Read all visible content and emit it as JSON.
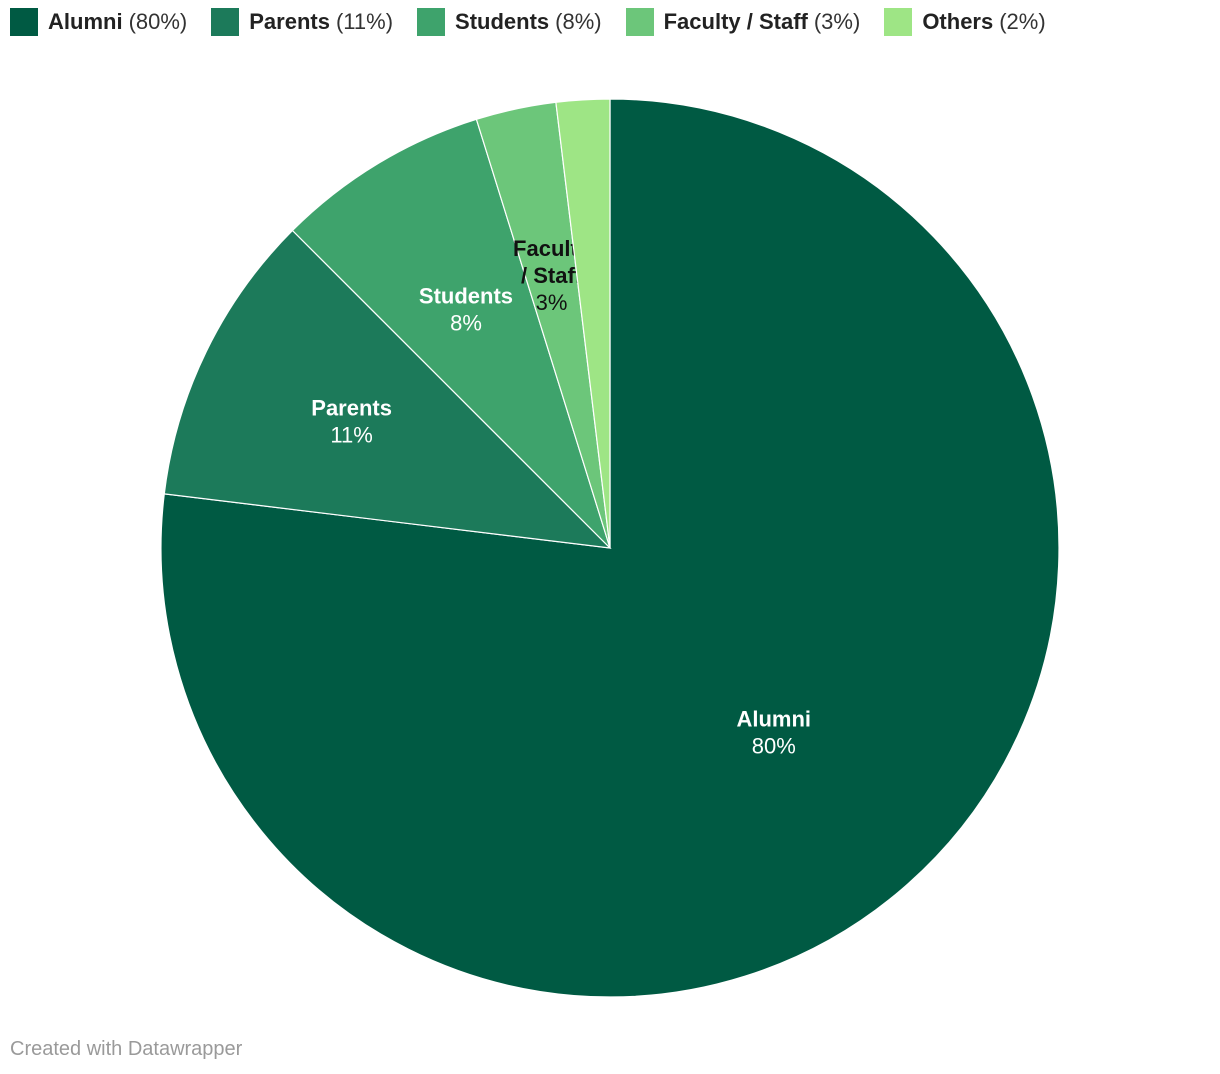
{
  "chart_data": {
    "type": "pie",
    "title": "",
    "slices": [
      {
        "name": "Alumni",
        "value": 80,
        "label": "80%",
        "legend_pct": "(80%)",
        "label_lines": [
          "Alumni"
        ],
        "color": "#005a43",
        "label_color": "#ffffff"
      },
      {
        "name": "Parents",
        "value": 11,
        "label": "11%",
        "legend_pct": "(11%)",
        "label_lines": [
          "Parents"
        ],
        "color": "#1c7a5a",
        "label_color": "#ffffff"
      },
      {
        "name": "Students",
        "value": 8,
        "label": "8%",
        "legend_pct": "(8%)",
        "label_lines": [
          "Students"
        ],
        "color": "#3ea36c",
        "label_color": "#ffffff"
      },
      {
        "name": "Faculty / Staff",
        "value": 3,
        "label": "3%",
        "legend_pct": "(3%)",
        "label_lines": [
          "Faculty",
          "/ Staff"
        ],
        "color": "#6cc67a",
        "label_color": "#111111"
      },
      {
        "name": "Others",
        "value": 2,
        "label": "2%",
        "legend_pct": "(2%)",
        "label_lines": [],
        "color": "#9ee585",
        "label_color": "#111111"
      }
    ],
    "legend_position": "top-left"
  },
  "footer": {
    "credit": "Created with Datawrapper"
  }
}
